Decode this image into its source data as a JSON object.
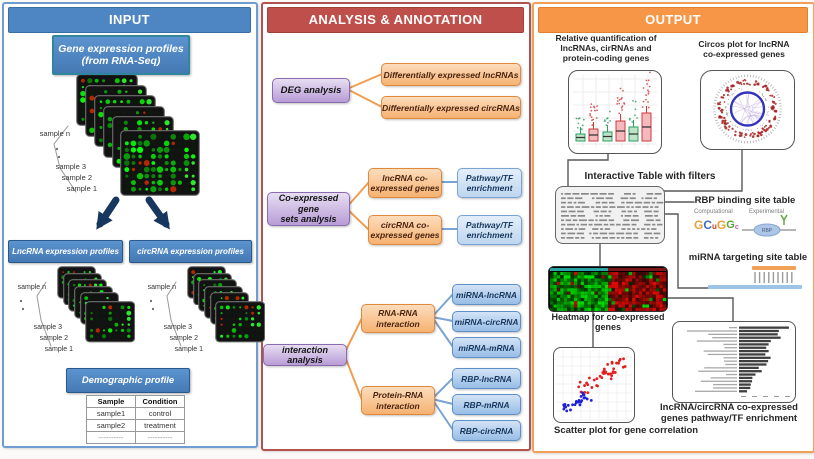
{
  "input": {
    "title": "INPUT",
    "source_box": "Gene expression profiles\n(from RNA-Seq)",
    "sample_labels": [
      "sample n",
      "sample 3",
      "sample 2",
      "sample 1"
    ],
    "lncrna_box": "LncRNA  expression profiles",
    "circrna_box": "circRNA  expression profiles",
    "demographic_box": "Demographic profile",
    "table": {
      "headers": [
        "Sample",
        "Condition"
      ],
      "rows": [
        [
          "sample1",
          "control"
        ],
        [
          "sample2",
          "treatment"
        ],
        [
          "----------",
          "----------"
        ]
      ]
    }
  },
  "analysis": {
    "title": "ANALYSIS & ANNOTATION",
    "deg": {
      "label": "DEG analysis",
      "outputs": [
        "Differentially expressed lncRNAs",
        "Differentially expressed circRNAs"
      ]
    },
    "coexpressed": {
      "label": "Co-expressed gene\nsets analysis",
      "branch1": {
        "gene": "lncRNA co-\nexpressed genes",
        "enrichment": "Pathway/TF\nenrichment"
      },
      "branch2": {
        "gene": "circRNA co-\nexpressed genes",
        "enrichment": "Pathway/TF\nenrichment"
      }
    },
    "interaction": {
      "label": "interaction analysis",
      "rna_rna": {
        "label": "RNA-RNA\ninteraction",
        "outputs": [
          "miRNA-lncRNA",
          "miRNA-circRNA",
          "miRNA-mRNA"
        ]
      },
      "protein_rna": {
        "label": "Protein-RNA\ninteraction",
        "outputs": [
          "RBP-lncRNA",
          "RBP-mRNA",
          "RBP-circRNA"
        ]
      }
    }
  },
  "output": {
    "title": "OUTPUT",
    "boxplot_caption": "Relative quantification of\nlncRNAs, cirRNAs and\nprotein-coding genes",
    "circos_caption": "Circos plot for lncRNA\nco-expressed genes",
    "table_caption": "Interactive Table with filters",
    "rbp": {
      "caption": "RBP binding site table",
      "computational": "Computational",
      "experimental": "Experimental",
      "protein_label": "RBP",
      "logo_letters": [
        {
          "ch": "G",
          "color": "#e8a33d"
        },
        {
          "ch": "C",
          "color": "#3b6fc4"
        },
        {
          "ch": "u",
          "color": "#cc4125"
        },
        {
          "ch": "G",
          "color": "#e8a33d"
        },
        {
          "ch": "G",
          "color": "#57a639"
        },
        {
          "ch": "c",
          "color": "#c45bb0"
        }
      ]
    },
    "mirna_caption": "miRNA targeting site table",
    "heatmap_caption": "Heatmap for co-expressed genes",
    "scatter_caption": "Scatter plot for gene correlation",
    "enrichment_caption": "lncRNA/circRNA co-expressed\ngenes pathway/TF enrichment"
  },
  "colors": {
    "input_header": "#4d86c2",
    "analysis_header": "#bf4f4b",
    "output_header": "#f79646",
    "connector_orange": "#ee9e53",
    "connector_blue": "#7aa3d4",
    "connector_grey": "#595959",
    "arrow_dark": "#17375e"
  }
}
